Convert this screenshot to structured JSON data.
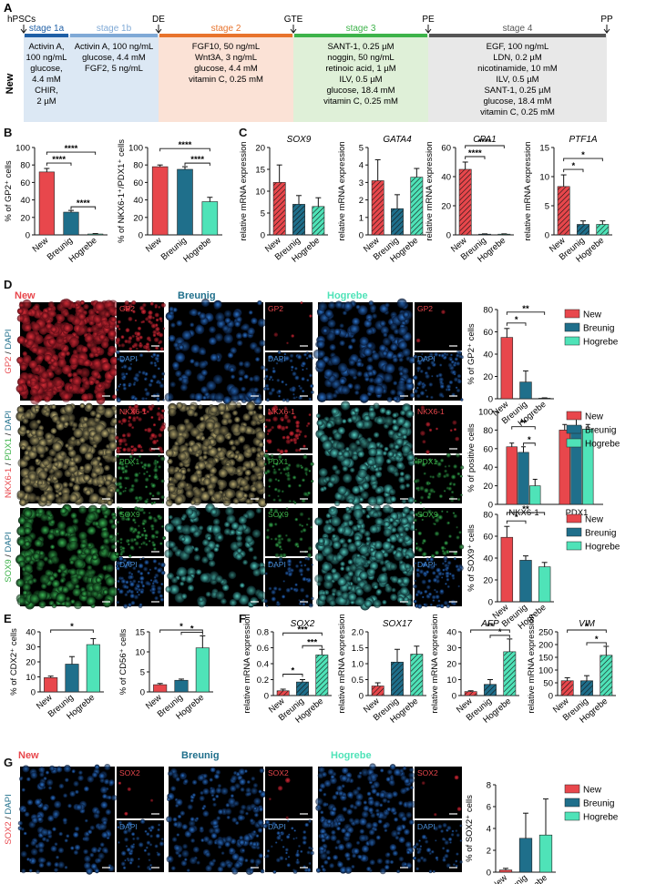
{
  "colors": {
    "new": "#e8474c",
    "breunig": "#1f6f8b",
    "hogrebe": "#4fe3b8",
    "bar_edge": "#222222",
    "stage1a": "#1f5fa6",
    "stage1b": "#7fa9d6",
    "stage2": "#e8732c",
    "stage3": "#3db34a",
    "stage4": "#555555",
    "bg1": "#dce8f4",
    "bg2": "#fbe2d6",
    "bg3": "#dff0d8",
    "bg4": "#e8e8e8"
  },
  "panel_A": {
    "label": "A",
    "start": "hPSCs",
    "row_label": "New",
    "checkpoints": [
      "DE",
      "GTE",
      "PE",
      "PP"
    ],
    "stages": [
      {
        "name": "stage 1a",
        "lines": [
          "Activin A,",
          "100 ng/mL",
          "glucose,",
          "4.4 mM",
          "CHIR,",
          "2 µM"
        ]
      },
      {
        "name": "stage 1b",
        "lines": [
          "Activin A, 100 ng/mL",
          "glucose, 4.4 mM",
          "FGF2, 5 ng/mL"
        ]
      },
      {
        "name": "stage 2",
        "lines": [
          "FGF10, 50 ng/mL",
          "Wnt3A, 3 ng/mL",
          "glucose, 4.4 mM",
          "vitamin C, 0.25 mM"
        ]
      },
      {
        "name": "stage 3",
        "lines": [
          "SANT-1, 0.25 µM",
          "noggin, 50 ng/mL",
          "retinoic acid, 1 µM",
          "ILV, 0.5 µM",
          "glucose, 18.4 mM",
          "vitamin C, 0.25 mM"
        ]
      },
      {
        "name": "stage 4",
        "lines": [
          "EGF, 100 ng/mL",
          "LDN, 0.2 µM",
          "nicotinamide, 10 mM",
          "ILV, 0.5 µM",
          "SANT-1, 0.25 µM",
          "glucose, 18.4 mM",
          "vitamin C, 0.25 mM"
        ]
      }
    ]
  },
  "panel_labels": {
    "B": "B",
    "C": "C",
    "D": "D",
    "E": "E",
    "F": "F",
    "G": "G"
  },
  "groups": [
    "New",
    "Breunig",
    "Hogrebe"
  ],
  "legend_entries": [
    "New",
    "Breunig",
    "Hogrebe"
  ],
  "micro": {
    "group_titles": [
      "New",
      "Breunig",
      "Hogrebe"
    ],
    "d_row_labels": [
      [
        {
          "t": "GP2",
          "c": "#e8474c"
        },
        {
          "t": " / ",
          "c": "#222"
        },
        {
          "t": "DAPI",
          "c": "#1f6f8b"
        }
      ],
      [
        {
          "t": "NKX6-1",
          "c": "#e8474c"
        },
        {
          "t": " / ",
          "c": "#222"
        },
        {
          "t": "PDX1",
          "c": "#3db34a"
        },
        {
          "t": " / ",
          "c": "#222"
        },
        {
          "t": "DAPI",
          "c": "#1f6f8b"
        }
      ],
      [
        {
          "t": "SOX9",
          "c": "#3db34a"
        },
        {
          "t": " / ",
          "c": "#222"
        },
        {
          "t": "DAPI",
          "c": "#1f6f8b"
        }
      ]
    ],
    "d_insets": [
      [
        "GP2",
        "DAPI"
      ],
      [
        "NKX6-1",
        "PDX1"
      ],
      [
        "SOX9",
        "DAPI"
      ]
    ],
    "g_row_label": [
      {
        "t": "SOX2",
        "c": "#e8474c"
      },
      {
        "t": " / ",
        "c": "#222"
      },
      {
        "t": "DAPI",
        "c": "#1f6f8b"
      }
    ],
    "g_insets": [
      "SOX2",
      "DAPI"
    ]
  },
  "chart_data": [
    {
      "id": "B1",
      "type": "bar",
      "ylabel": "% of GP2⁺ cells",
      "ylim": [
        0,
        100
      ],
      "yticks": [
        0,
        20,
        40,
        60,
        80,
        100
      ],
      "categories": [
        "New",
        "Breunig",
        "Hogrebe"
      ],
      "values": [
        72,
        26,
        1
      ],
      "errors": [
        4,
        2,
        0.5
      ],
      "signif": [
        {
          "a": 0,
          "b": 1,
          "t": "****"
        },
        {
          "a": 0,
          "b": 2,
          "t": "****"
        },
        {
          "a": 1,
          "b": 2,
          "t": "****"
        }
      ]
    },
    {
      "id": "B2",
      "type": "bar",
      "ylabel": "% of NKX6-1⁺/PDX1⁺ cells",
      "ylim": [
        0,
        100
      ],
      "yticks": [
        0,
        20,
        40,
        60,
        80,
        100
      ],
      "categories": [
        "New",
        "Breunig",
        "Hogrebe"
      ],
      "values": [
        78,
        75,
        38
      ],
      "errors": [
        2,
        3,
        5
      ],
      "signif": [
        {
          "a": 0,
          "b": 2,
          "t": "****"
        },
        {
          "a": 1,
          "b": 2,
          "t": "****"
        }
      ]
    },
    {
      "id": "C1",
      "type": "bar",
      "title": "SOX9",
      "ylabel": "relative mRNA expression",
      "ylim": [
        0,
        20
      ],
      "yticks": [
        0,
        5,
        10,
        15,
        20
      ],
      "categories": [
        "New",
        "Breunig",
        "Hogrebe"
      ],
      "values": [
        12,
        7,
        6.5
      ],
      "errors": [
        4,
        2,
        2
      ],
      "hatched": true,
      "signif": []
    },
    {
      "id": "C2",
      "type": "bar",
      "title": "GATA4",
      "ylabel": "relative mRNA expression",
      "ylim": [
        0,
        5
      ],
      "yticks": [
        0,
        1,
        2,
        3,
        4,
        5
      ],
      "categories": [
        "New",
        "Breunig",
        "Hogrebe"
      ],
      "values": [
        3.1,
        1.5,
        3.3
      ],
      "errors": [
        1.2,
        0.8,
        0.5
      ],
      "hatched": true,
      "signif": []
    },
    {
      "id": "C3",
      "type": "bar",
      "title": "CPA1",
      "ylabel": "relative mRNA expression",
      "ylim": [
        0,
        60
      ],
      "yticks": [
        0,
        20,
        40,
        60
      ],
      "categories": [
        "New",
        "Breunig",
        "Hogrebe"
      ],
      "values": [
        45,
        0.5,
        0.5
      ],
      "errors": [
        5,
        0.2,
        0.2
      ],
      "hatched": true,
      "signif": [
        {
          "a": 0,
          "b": 1,
          "t": "****"
        },
        {
          "a": 0,
          "b": 2,
          "t": "****"
        }
      ]
    },
    {
      "id": "C4",
      "type": "bar",
      "title": "PTF1A",
      "ylabel": "relative mRNA expression",
      "ylim": [
        0,
        15
      ],
      "yticks": [
        0,
        5,
        10,
        15
      ],
      "categories": [
        "New",
        "Breunig",
        "Hogrebe"
      ],
      "values": [
        8.3,
        1.8,
        1.8
      ],
      "errors": [
        2,
        0.6,
        0.6
      ],
      "hatched": true,
      "signif": [
        {
          "a": 0,
          "b": 1,
          "t": "*"
        },
        {
          "a": 0,
          "b": 2,
          "t": "*"
        }
      ]
    },
    {
      "id": "D1",
      "type": "bar",
      "ylabel": "% of GP2⁺ cells",
      "ylim": [
        0,
        80
      ],
      "yticks": [
        0,
        20,
        40,
        60,
        80
      ],
      "categories": [
        "New",
        "Breunig",
        "Hogrebe"
      ],
      "values": [
        55,
        15,
        0.5
      ],
      "errors": [
        8,
        10,
        0.3
      ],
      "signif": [
        {
          "a": 0,
          "b": 1,
          "t": "*"
        },
        {
          "a": 0,
          "b": 2,
          "t": "**"
        }
      ]
    },
    {
      "id": "D2",
      "type": "bar",
      "ylabel": "% of positive cells",
      "ylim": [
        0,
        100
      ],
      "yticks": [
        0,
        20,
        40,
        60,
        80,
        100
      ],
      "categories": [
        "NKX6-1",
        "PDX1"
      ],
      "series": [
        {
          "name": "New",
          "values": [
            62,
            80
          ],
          "errors": [
            4,
            6
          ]
        },
        {
          "name": "Breunig",
          "values": [
            56,
            84
          ],
          "errors": [
            6,
            8
          ]
        },
        {
          "name": "Hogrebe",
          "values": [
            20,
            81
          ],
          "errors": [
            7,
            5
          ]
        }
      ],
      "signif": [
        {
          "a": 0,
          "b": 2,
          "t": "**"
        },
        {
          "a": 1,
          "b": 2,
          "t": "*"
        }
      ]
    },
    {
      "id": "D3",
      "type": "bar",
      "ylabel": "% of SOX9⁺ cells",
      "ylim": [
        0,
        80
      ],
      "yticks": [
        0,
        20,
        40,
        60,
        80
      ],
      "categories": [
        "New",
        "Breunig",
        "Hogrebe"
      ],
      "values": [
        59,
        38,
        32
      ],
      "errors": [
        10,
        4,
        4
      ],
      "signif": [
        {
          "a": 0,
          "b": 1,
          "t": "*"
        },
        {
          "a": 0,
          "b": 2,
          "t": "**"
        }
      ]
    },
    {
      "id": "E1",
      "type": "bar",
      "ylabel": "% of CDX2⁺ cells",
      "ylim": [
        0,
        40
      ],
      "yticks": [
        0,
        10,
        20,
        30,
        40
      ],
      "categories": [
        "New",
        "Breunig",
        "Hogrebe"
      ],
      "values": [
        9.5,
        18.5,
        31.5
      ],
      "errors": [
        1,
        5,
        4
      ],
      "signif": [
        {
          "a": 0,
          "b": 2,
          "t": "*"
        }
      ]
    },
    {
      "id": "E2",
      "type": "bar",
      "ylabel": "% of CD56⁺ cells",
      "ylim": [
        0,
        15
      ],
      "yticks": [
        0,
        5,
        10,
        15
      ],
      "categories": [
        "New",
        "Breunig",
        "Hogrebe"
      ],
      "values": [
        1.8,
        2.9,
        11
      ],
      "errors": [
        0.3,
        0.3,
        3
      ],
      "signif": [
        {
          "a": 0,
          "b": 2,
          "t": "*"
        },
        {
          "a": 1,
          "b": 2,
          "t": "*"
        }
      ]
    },
    {
      "id": "F1",
      "type": "bar",
      "title": "SOX2",
      "ylabel": "relative mRNA expression",
      "ylim": [
        0,
        0.8
      ],
      "yticks": [
        0,
        0.2,
        0.4,
        0.6,
        0.8
      ],
      "categories": [
        "New",
        "Breunig",
        "Hogrebe"
      ],
      "values": [
        0.06,
        0.17,
        0.51
      ],
      "errors": [
        0.02,
        0.03,
        0.07
      ],
      "hatched": true,
      "signif": [
        {
          "a": 0,
          "b": 1,
          "t": "*"
        },
        {
          "a": 0,
          "b": 2,
          "t": "***"
        },
        {
          "a": 1,
          "b": 2,
          "t": "***"
        }
      ]
    },
    {
      "id": "F2",
      "type": "bar",
      "title": "SOX17",
      "ylabel": "relative mRNA expression",
      "ylim": [
        0,
        2
      ],
      "yticks": [
        0,
        0.5,
        1,
        1.5,
        2
      ],
      "yticklabels": [
        "0",
        "0.5",
        "1.0",
        "1.5",
        "2.0"
      ],
      "categories": [
        "New",
        "Breunig",
        "Hogrebe"
      ],
      "values": [
        0.3,
        1.05,
        1.3
      ],
      "errors": [
        0.1,
        0.4,
        0.25
      ],
      "hatched": true,
      "signif": []
    },
    {
      "id": "F3",
      "type": "bar",
      "title": "AFP",
      "ylabel": "relative mRNA expression",
      "ylim": [
        0,
        40
      ],
      "yticks": [
        0,
        10,
        20,
        30,
        40
      ],
      "categories": [
        "New",
        "Breunig",
        "Hogrebe"
      ],
      "values": [
        2.5,
        7,
        27.5
      ],
      "errors": [
        0.5,
        3,
        8
      ],
      "hatched": true,
      "signif": [
        {
          "a": 0,
          "b": 2,
          "t": "**"
        },
        {
          "a": 1,
          "b": 2,
          "t": "*"
        }
      ]
    },
    {
      "id": "F4",
      "type": "bar",
      "title": "VIM",
      "ylabel": "relative mRNA expression",
      "ylim": [
        0,
        250
      ],
      "yticks": [
        0,
        50,
        100,
        150,
        200,
        250
      ],
      "categories": [
        "New",
        "Breunig",
        "Hogrebe"
      ],
      "values": [
        58,
        58,
        158
      ],
      "errors": [
        12,
        20,
        35
      ],
      "hatched": true,
      "signif": [
        {
          "a": 0,
          "b": 2,
          "t": "*"
        },
        {
          "a": 1,
          "b": 2,
          "t": "*"
        }
      ]
    },
    {
      "id": "G1",
      "type": "bar",
      "ylabel": "% of SOX2⁺ cells",
      "ylim": [
        0,
        8
      ],
      "yticks": [
        0,
        2,
        4,
        6,
        8
      ],
      "categories": [
        "New",
        "Breunig",
        "Hogrebe"
      ],
      "values": [
        0.2,
        3.1,
        3.4
      ],
      "errors": [
        0.15,
        2.3,
        3.3
      ],
      "signif": []
    }
  ]
}
